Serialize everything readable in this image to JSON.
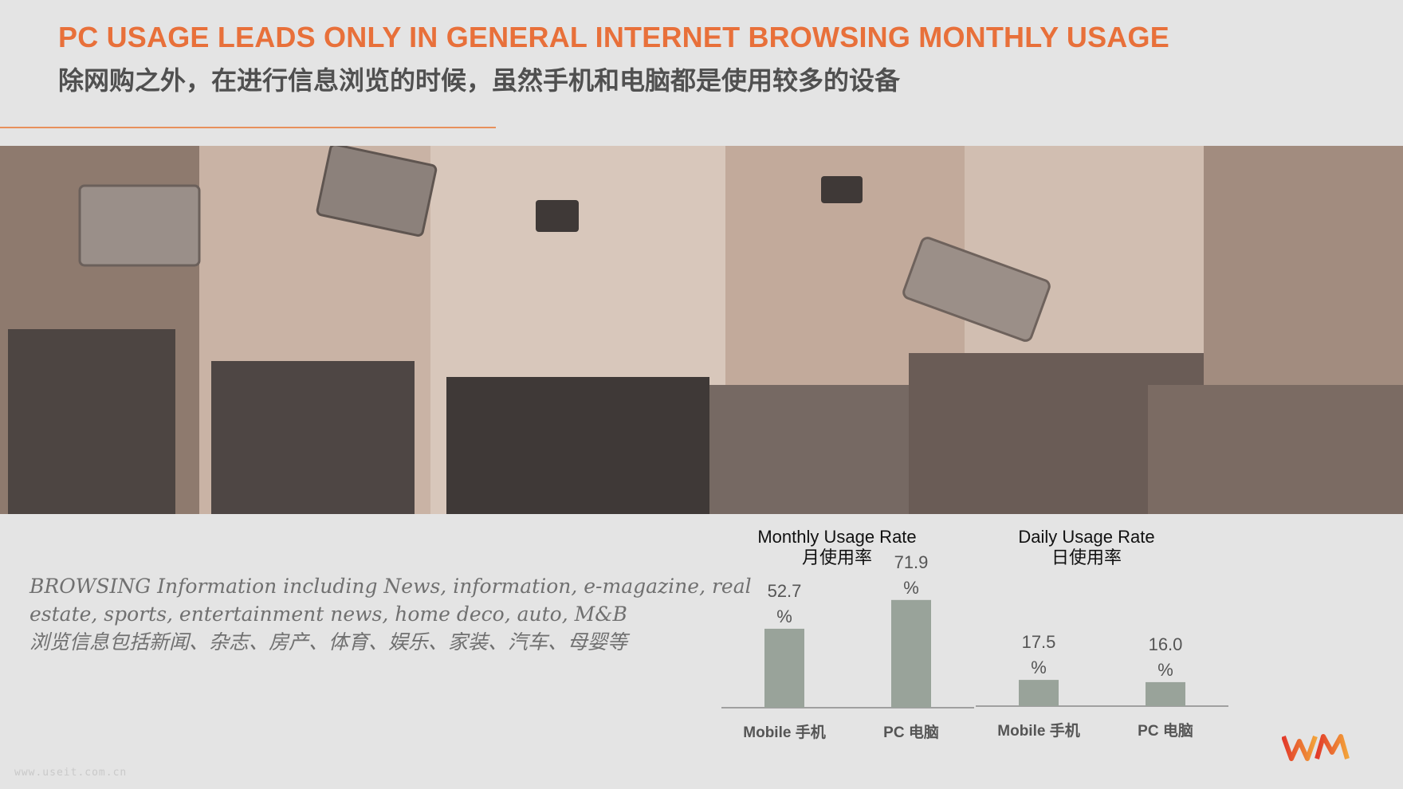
{
  "header": {
    "title": "PC USAGE LEADS ONLY IN GENERAL INTERNET BROWSING MONTHLY USAGE",
    "subtitle": "除网购之外，在进行信息浏览的时候，虽然手机和电脑都是使用较多的设备"
  },
  "description": {
    "line1": "BROWSING Information including News, information, e-magazine, real",
    "line2": "estate, sports, entertainment news, home deco, auto, M&B",
    "line3": "浏览信息包括新闻、杂志、房产、体育、娱乐、家装、汽车、母婴等"
  },
  "colors": {
    "accent": "#e8703a",
    "bar": "#99a39a",
    "axis": "#8a8a8a"
  },
  "footer": {
    "watermark": "www.useit.com.cn",
    "logo_icon": "wm-logo-icon"
  },
  "chart_data": [
    {
      "type": "bar",
      "title": "Monthly Usage Rate",
      "title_cn": "月使用率",
      "categories": [
        "Mobile 手机",
        "PC 电脑"
      ],
      "values": [
        52.7,
        71.9
      ],
      "value_labels": [
        "52.7",
        "71.9"
      ],
      "unit": "%",
      "ylim": [
        0,
        100
      ],
      "grid": false,
      "legend": "none"
    },
    {
      "type": "bar",
      "title": "Daily Usage Rate",
      "title_cn": "日使用率",
      "categories": [
        "Mobile 手机",
        "PC 电脑"
      ],
      "values": [
        17.5,
        16.0
      ],
      "value_labels": [
        "17.5",
        "16.0"
      ],
      "unit": "%",
      "ylim": [
        0,
        100
      ],
      "grid": false,
      "legend": "none"
    }
  ]
}
